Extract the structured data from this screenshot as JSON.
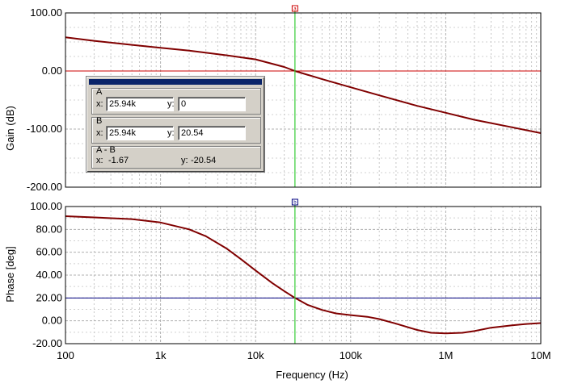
{
  "chart_data": [
    {
      "type": "line",
      "ylabel": "Gain (dB)",
      "xscale": "log",
      "xlim": [
        100,
        10000000
      ],
      "ylim": [
        -200,
        100
      ],
      "yticks": [
        "100.00",
        "0.00",
        "-100.00",
        "-200.00"
      ],
      "grid": true,
      "series": [
        {
          "color": "#800000",
          "x": [
            100,
            200,
            500,
            1000,
            2000,
            5000,
            10000,
            20000,
            25940,
            50000,
            100000,
            200000,
            500000,
            1000000,
            2000000,
            5000000,
            10000000
          ],
          "y": [
            58,
            52,
            45,
            40,
            35,
            27,
            20,
            7,
            0,
            -14,
            -28,
            -42,
            -60,
            -72,
            -84,
            -97,
            -107
          ]
        }
      ],
      "hline": {
        "y": 0,
        "color": "#cc0000"
      },
      "cursor_marker": "a"
    },
    {
      "type": "line",
      "ylabel": "Phase [deg]",
      "xlabel": "Frequency (Hz)",
      "xscale": "log",
      "xlim": [
        100,
        10000000
      ],
      "ylim": [
        -20,
        100
      ],
      "yticks": [
        "100.00",
        "80.00",
        "60.00",
        "40.00",
        "20.00",
        "0.00",
        "-20.00"
      ],
      "xticks": [
        {
          "value": 100,
          "label": "100"
        },
        {
          "value": 1000,
          "label": "1k"
        },
        {
          "value": 10000,
          "label": "10k"
        },
        {
          "value": 100000,
          "label": "100k"
        },
        {
          "value": 1000000,
          "label": "1M"
        },
        {
          "value": 10000000,
          "label": "10M"
        }
      ],
      "grid": true,
      "series": [
        {
          "color": "#800000",
          "x": [
            100,
            200,
            500,
            1000,
            2000,
            3000,
            5000,
            7000,
            10000,
            15000,
            20000,
            25940,
            35000,
            50000,
            70000,
            100000,
            150000,
            200000,
            300000,
            500000,
            700000,
            1000000,
            1500000,
            2000000,
            3000000,
            5000000,
            7000000,
            10000000
          ],
          "y": [
            91.5,
            90.5,
            89,
            86,
            80,
            74,
            63,
            54,
            44,
            33,
            26,
            20,
            14,
            9.5,
            6.5,
            5,
            3.5,
            1.5,
            -2.5,
            -8,
            -10.5,
            -11,
            -10.5,
            -9,
            -6,
            -4,
            -2.8,
            -2
          ]
        }
      ],
      "hline": {
        "y": 20,
        "color": "#000080"
      },
      "cursor_marker": "b"
    }
  ],
  "cursor": {
    "x_value": 25940,
    "a": {
      "label": "A",
      "x_label": "x:",
      "x": "25.94k",
      "y_label": "y:",
      "y": "0"
    },
    "b": {
      "label": "B",
      "x_label": "x:",
      "x": "25.94k",
      "y_label": "y:",
      "y": "20.54"
    },
    "diff": {
      "label": "A - B",
      "x_label": "x:",
      "x": "-1.67",
      "y_label": "y:",
      "y": "-20.54"
    }
  }
}
